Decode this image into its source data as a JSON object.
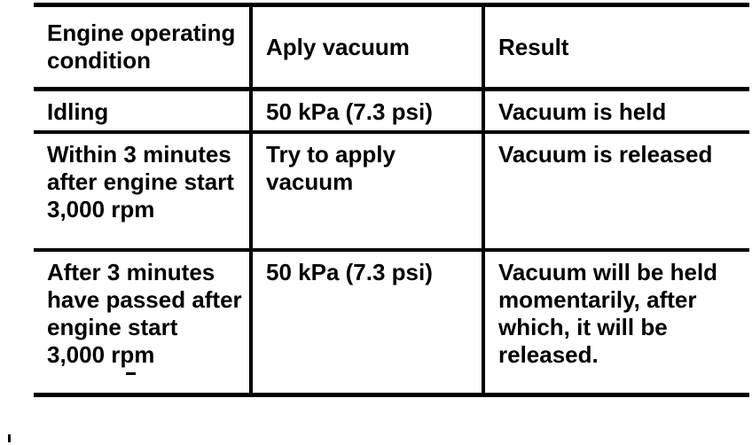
{
  "colors": {
    "ink": "#000000",
    "background": "#ffffff"
  },
  "table": {
    "headers": [
      "Engine operating\ncondition",
      "Aply vacuum",
      "Result"
    ],
    "rows": [
      {
        "condition": "Idling",
        "vacuum": "50 kPa (7.3 psi)",
        "result": "Vacuum is held"
      },
      {
        "condition": "Within 3 minutes\nafter engine start\n3,000 rpm",
        "vacuum": "Try to apply\nvacuum",
        "result": "Vacuum is released"
      },
      {
        "condition": "After 3 minutes\nhave passed after\nengine start\n3,000 rpm",
        "vacuum": "50 kPa (7.3 psi)",
        "result": "Vacuum will be held\nmomentarily, after\nwhich, it will be\nreleased."
      }
    ]
  }
}
